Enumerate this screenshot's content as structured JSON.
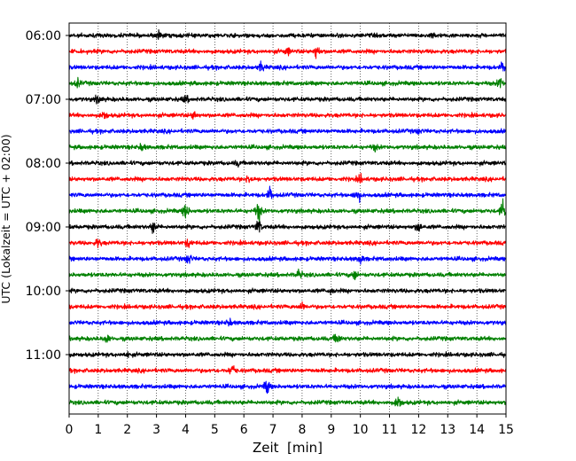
{
  "chart_data": {
    "type": "line",
    "title": "",
    "xlabel": "Zeit  [min]",
    "ylabel": "UTC (Lokalzeit = UTC + 02:00)",
    "xlim": [
      0,
      15
    ],
    "x_ticks": [
      0,
      1,
      2,
      3,
      4,
      5,
      6,
      7,
      8,
      9,
      10,
      11,
      12,
      13,
      14,
      15
    ],
    "x_tick_labels": [
      "0",
      "1",
      "2",
      "3",
      "4",
      "5",
      "6",
      "7",
      "8",
      "9",
      "10",
      "11",
      "12",
      "13",
      "14",
      "15"
    ],
    "y_tick_labels": [
      "06:00",
      "07:00",
      "08:00",
      "09:00",
      "10:00",
      "11:00"
    ],
    "grid": "vertical dotted lines at each minute",
    "trace_interval_minutes": 15,
    "colors": {
      "cycle": [
        "#000000",
        "#ff0000",
        "#0000ff",
        "#008000"
      ]
    },
    "series": [
      {
        "start": "06:00",
        "color": "#000000",
        "events": [
          {
            "t": 3.1,
            "amp": 0.9
          },
          {
            "t": 12.5,
            "amp": 0.6
          }
        ]
      },
      {
        "start": "06:15",
        "color": "#ff0000",
        "events": [
          {
            "t": 8.5,
            "amp": 1.6
          },
          {
            "t": 7.5,
            "amp": 0.7
          }
        ]
      },
      {
        "start": "06:30",
        "color": "#0000ff",
        "events": [
          {
            "t": 6.6,
            "amp": 1.0
          },
          {
            "t": 14.9,
            "amp": 1.1
          }
        ]
      },
      {
        "start": "06:45",
        "color": "#008000",
        "events": [
          {
            "t": 0.3,
            "amp": 0.8
          },
          {
            "t": 14.8,
            "amp": 1.2
          }
        ]
      },
      {
        "start": "07:00",
        "color": "#000000",
        "events": [
          {
            "t": 1.0,
            "amp": 0.9
          },
          {
            "t": 4.0,
            "amp": 0.7
          }
        ]
      },
      {
        "start": "07:15",
        "color": "#ff0000",
        "events": [
          {
            "t": 1.2,
            "amp": 0.9
          },
          {
            "t": 4.3,
            "amp": 0.9
          }
        ]
      },
      {
        "start": "07:30",
        "color": "#0000ff",
        "events": [
          {
            "t": 12.0,
            "amp": 0.5
          }
        ]
      },
      {
        "start": "07:45",
        "color": "#008000",
        "events": [
          {
            "t": 2.5,
            "amp": 0.7
          },
          {
            "t": 10.5,
            "amp": 0.6
          }
        ]
      },
      {
        "start": "08:00",
        "color": "#000000",
        "events": [
          {
            "t": 5.8,
            "amp": 0.5
          }
        ]
      },
      {
        "start": "08:15",
        "color": "#ff0000",
        "events": [
          {
            "t": 6.2,
            "amp": 1.1
          },
          {
            "t": 10.0,
            "amp": 0.8
          }
        ]
      },
      {
        "start": "08:30",
        "color": "#0000ff",
        "events": [
          {
            "t": 6.9,
            "amp": 1.5
          },
          {
            "t": 9.9,
            "amp": 1.8
          }
        ]
      },
      {
        "start": "08:45",
        "color": "#008000",
        "events": [
          {
            "t": 4.0,
            "amp": 1.8
          },
          {
            "t": 6.5,
            "amp": 2.1
          },
          {
            "t": 14.9,
            "amp": 2.4
          }
        ]
      },
      {
        "start": "09:00",
        "color": "#000000",
        "events": [
          {
            "t": 2.9,
            "amp": 1.3
          },
          {
            "t": 6.5,
            "amp": 1.6
          },
          {
            "t": 12.0,
            "amp": 1.2
          }
        ]
      },
      {
        "start": "09:15",
        "color": "#ff0000",
        "events": [
          {
            "t": 1.0,
            "amp": 1.0
          },
          {
            "t": 4.1,
            "amp": 0.9
          }
        ]
      },
      {
        "start": "09:30",
        "color": "#0000ff",
        "events": [
          {
            "t": 4.1,
            "amp": 1.2
          },
          {
            "t": 10.0,
            "amp": 1.0
          }
        ]
      },
      {
        "start": "09:45",
        "color": "#008000",
        "events": [
          {
            "t": 7.9,
            "amp": 1.0
          },
          {
            "t": 9.8,
            "amp": 1.1
          }
        ]
      },
      {
        "start": "10:00",
        "color": "#000000",
        "events": [
          {
            "t": 9.0,
            "amp": 0.6
          }
        ]
      },
      {
        "start": "10:15",
        "color": "#ff0000",
        "events": [
          {
            "t": 8.0,
            "amp": 0.8
          }
        ]
      },
      {
        "start": "10:30",
        "color": "#0000ff",
        "events": [
          {
            "t": 5.5,
            "amp": 0.7
          }
        ]
      },
      {
        "start": "10:45",
        "color": "#008000",
        "events": [
          {
            "t": 1.3,
            "amp": 0.9
          },
          {
            "t": 9.2,
            "amp": 1.3
          }
        ]
      },
      {
        "start": "11:00",
        "color": "#000000",
        "events": [
          {
            "t": 2.0,
            "amp": 0.6
          }
        ]
      },
      {
        "start": "11:15",
        "color": "#ff0000",
        "events": [
          {
            "t": 5.6,
            "amp": 1.4
          }
        ]
      },
      {
        "start": "11:30",
        "color": "#0000ff",
        "events": [
          {
            "t": 6.8,
            "amp": 1.6
          }
        ]
      },
      {
        "start": "11:45",
        "color": "#008000",
        "events": [
          {
            "t": 11.3,
            "amp": 1.6
          }
        ]
      }
    ]
  }
}
